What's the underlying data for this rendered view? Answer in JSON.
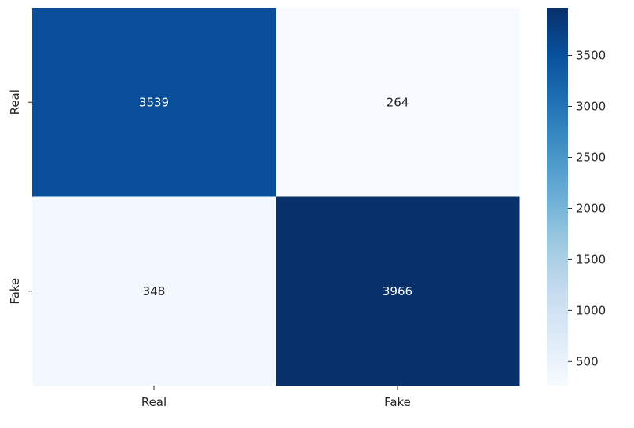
{
  "chart_data": {
    "type": "heatmap",
    "title": "",
    "xlabel": "",
    "ylabel": "",
    "x_categories": [
      "Real",
      "Fake"
    ],
    "y_categories": [
      "Real",
      "Fake"
    ],
    "values": [
      [
        3539,
        264
      ],
      [
        348,
        3966
      ]
    ],
    "colormap": "Blues",
    "colorbar": {
      "vmin": 264,
      "vmax": 3966,
      "ticks": [
        500,
        1000,
        1500,
        2000,
        2500,
        3000,
        3500
      ]
    },
    "annotations": true,
    "grid": false
  }
}
